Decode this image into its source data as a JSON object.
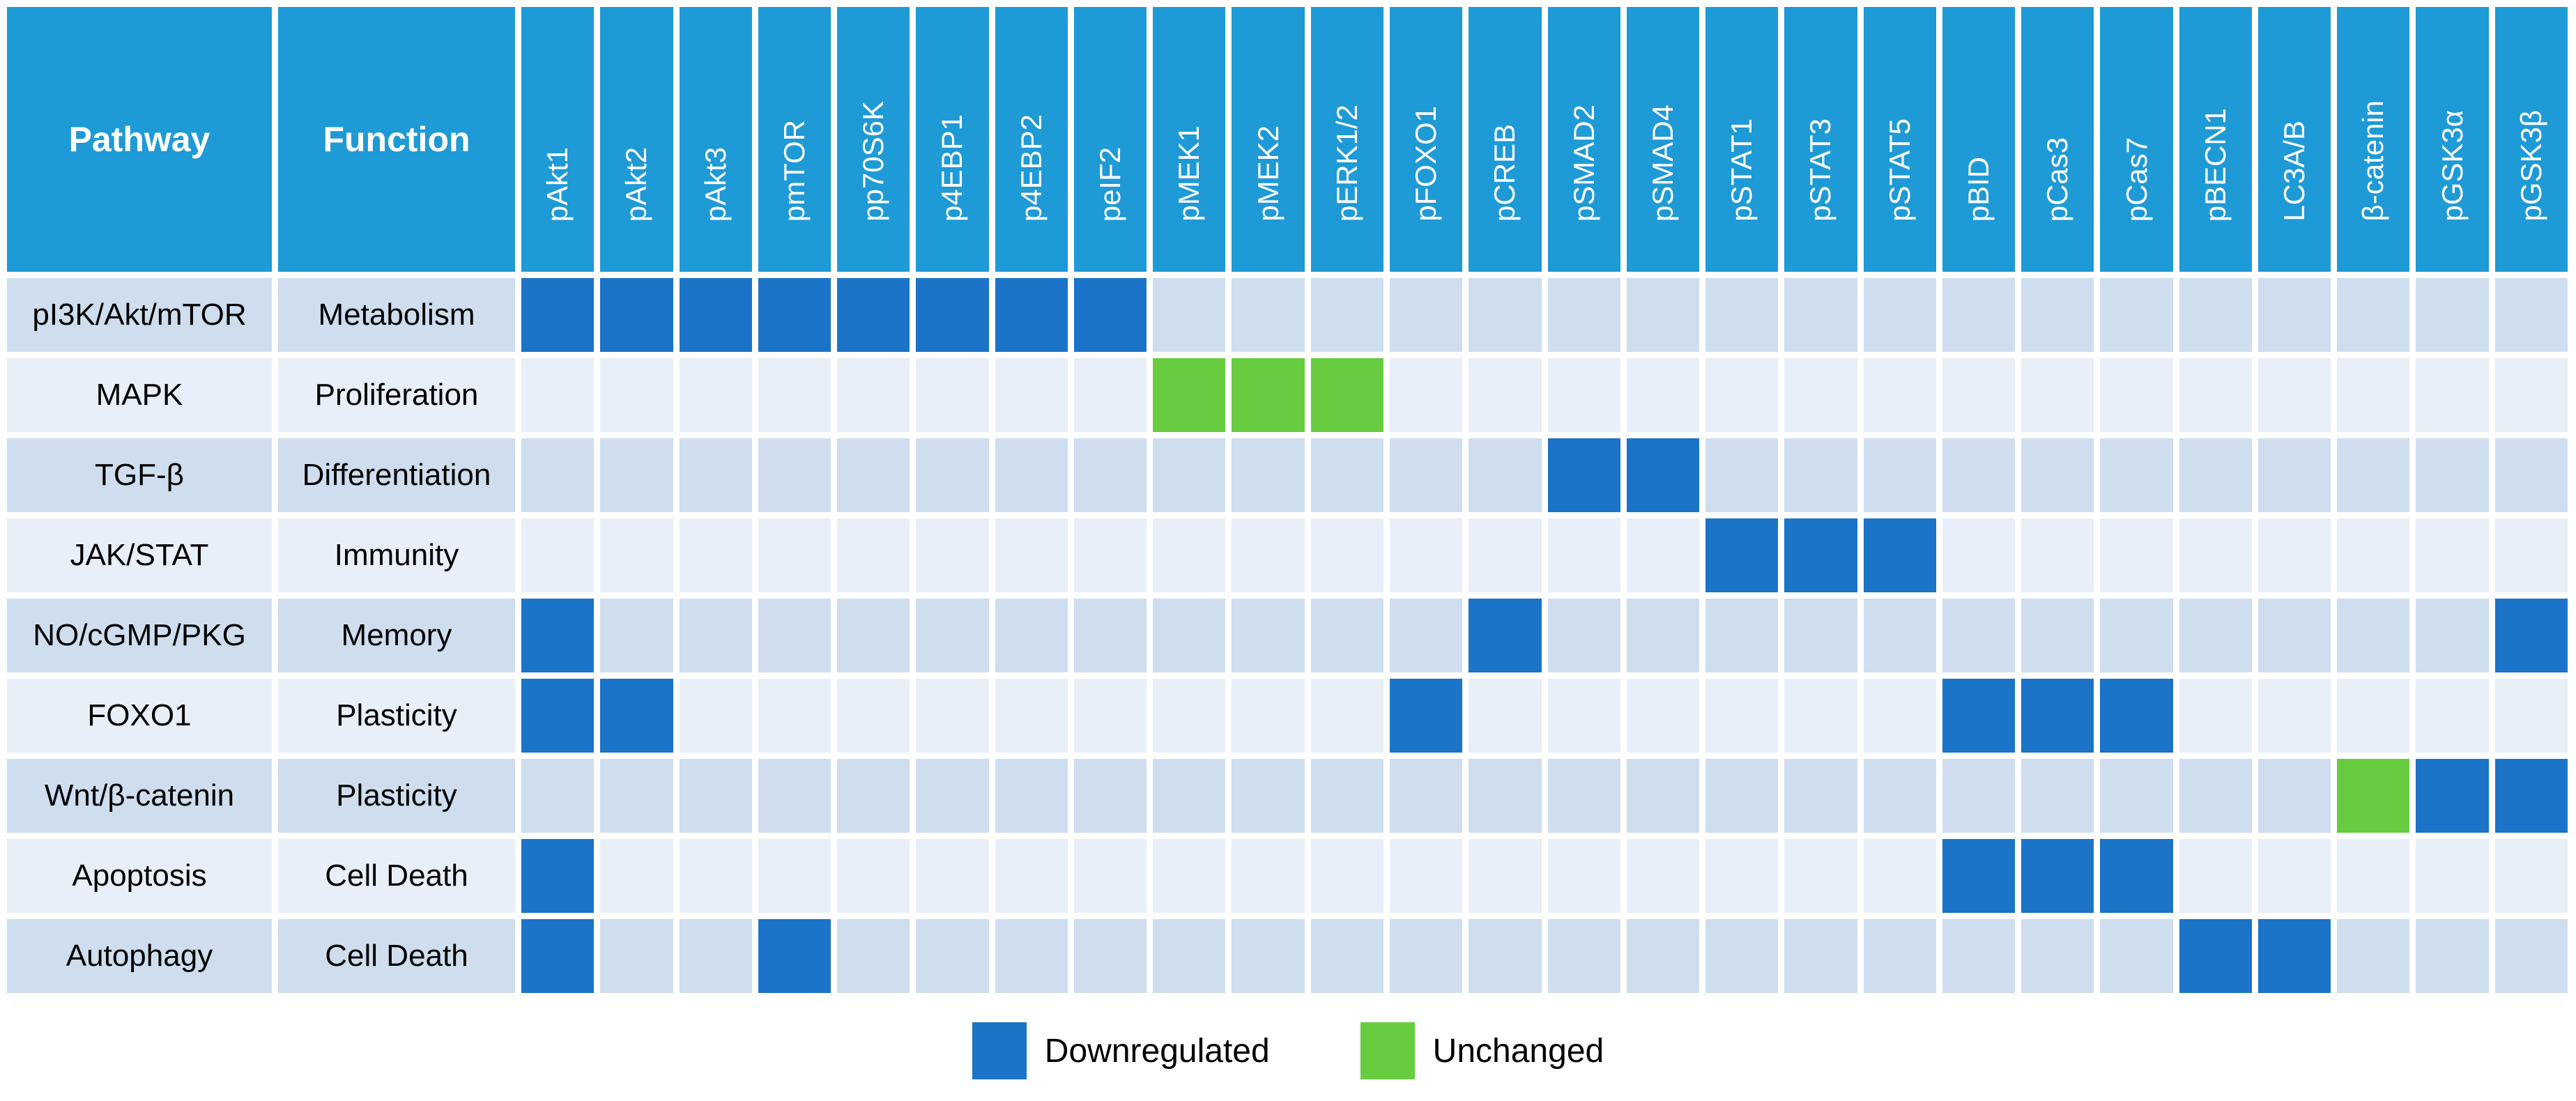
{
  "table": {
    "pathway_header": "Pathway",
    "function_header": "Function",
    "columns": [
      "pAkt1",
      "pAkt2",
      "pAkt3",
      "pmTOR",
      "pp70S6K",
      "p4EBP1",
      "p4EBP2",
      "peIF2",
      "pMEK1",
      "pMEK2",
      "pERK1/2",
      "pFOXO1",
      "pCREB",
      "pSMAD2",
      "pSMAD4",
      "pSTAT1",
      "pSTAT3",
      "pSTAT5",
      "pBID",
      "pCas3",
      "pCas7",
      "pBECN1",
      "LC3A/B",
      "β-catenin",
      "pGSK3α",
      "pGSK3β"
    ],
    "cell_state_codes": {
      "0": "none",
      "1": "downregulated",
      "2": "unchanged"
    },
    "rows": [
      {
        "pathway": "pI3K/Akt/mTOR",
        "function": "Metabolism",
        "cells": [
          1,
          1,
          1,
          1,
          1,
          1,
          1,
          1,
          0,
          0,
          0,
          0,
          0,
          0,
          0,
          0,
          0,
          0,
          0,
          0,
          0,
          0,
          0,
          0,
          0,
          0
        ]
      },
      {
        "pathway": "MAPK",
        "function": "Proliferation",
        "cells": [
          0,
          0,
          0,
          0,
          0,
          0,
          0,
          0,
          2,
          2,
          2,
          0,
          0,
          0,
          0,
          0,
          0,
          0,
          0,
          0,
          0,
          0,
          0,
          0,
          0,
          0
        ]
      },
      {
        "pathway": "TGF-β",
        "function": "Differentiation",
        "cells": [
          0,
          0,
          0,
          0,
          0,
          0,
          0,
          0,
          0,
          0,
          0,
          0,
          0,
          1,
          1,
          0,
          0,
          0,
          0,
          0,
          0,
          0,
          0,
          0,
          0,
          0
        ]
      },
      {
        "pathway": "JAK/STAT",
        "function": "Immunity",
        "cells": [
          0,
          0,
          0,
          0,
          0,
          0,
          0,
          0,
          0,
          0,
          0,
          0,
          0,
          0,
          0,
          1,
          1,
          1,
          0,
          0,
          0,
          0,
          0,
          0,
          0,
          0
        ]
      },
      {
        "pathway": "NO/cGMP/PKG",
        "function": "Memory",
        "cells": [
          1,
          0,
          0,
          0,
          0,
          0,
          0,
          0,
          0,
          0,
          0,
          0,
          1,
          0,
          0,
          0,
          0,
          0,
          0,
          0,
          0,
          0,
          0,
          0,
          0,
          1
        ]
      },
      {
        "pathway": "FOXO1",
        "function": "Plasticity",
        "cells": [
          1,
          1,
          0,
          0,
          0,
          0,
          0,
          0,
          0,
          0,
          0,
          1,
          0,
          0,
          0,
          0,
          0,
          0,
          1,
          1,
          1,
          0,
          0,
          0,
          0,
          0
        ]
      },
      {
        "pathway": "Wnt/β-catenin",
        "function": "Plasticity",
        "cells": [
          0,
          0,
          0,
          0,
          0,
          0,
          0,
          0,
          0,
          0,
          0,
          0,
          0,
          0,
          0,
          0,
          0,
          0,
          0,
          0,
          0,
          0,
          0,
          2,
          1,
          1
        ]
      },
      {
        "pathway": "Apoptosis",
        "function": "Cell Death",
        "cells": [
          1,
          0,
          0,
          0,
          0,
          0,
          0,
          0,
          0,
          0,
          0,
          0,
          0,
          0,
          0,
          0,
          0,
          0,
          1,
          1,
          1,
          0,
          0,
          0,
          0,
          0
        ]
      },
      {
        "pathway": "Autophagy",
        "function": "Cell Death",
        "cells": [
          1,
          0,
          0,
          1,
          0,
          0,
          0,
          0,
          0,
          0,
          0,
          0,
          0,
          0,
          0,
          0,
          0,
          0,
          0,
          0,
          0,
          1,
          1,
          0,
          0,
          0
        ]
      }
    ]
  },
  "legend": {
    "items": [
      {
        "label": "Downregulated",
        "state": "downregulated",
        "color": "#1B74C8"
      },
      {
        "label": "Unchanged",
        "state": "unchanged",
        "color": "#68CC41"
      }
    ]
  },
  "colors": {
    "header_blue": "#1E9AD6",
    "downregulated": "#1B74C8",
    "unchanged": "#68CC41",
    "row_odd": "#CEDEEE",
    "row_even": "#E9EFF8"
  },
  "chart_data": {
    "type": "heatmap",
    "title": "",
    "columns": [
      "pAkt1",
      "pAkt2",
      "pAkt3",
      "pmTOR",
      "pp70S6K",
      "p4EBP1",
      "p4EBP2",
      "peIF2",
      "pMEK1",
      "pMEK2",
      "pERK1/2",
      "pFOXO1",
      "pCREB",
      "pSMAD2",
      "pSMAD4",
      "pSTAT1",
      "pSTAT3",
      "pSTAT5",
      "pBID",
      "pCas3",
      "pCas7",
      "pBECN1",
      "LC3A/B",
      "β-catenin",
      "pGSK3α",
      "pGSK3β"
    ],
    "legend": [
      "Downregulated",
      "Unchanged"
    ],
    "legend_position": "bottom",
    "series": [
      {
        "pathway": "pI3K/Akt/mTOR",
        "function": "Metabolism",
        "downregulated": [
          "pAkt1",
          "pAkt2",
          "pAkt3",
          "pmTOR",
          "pp70S6K",
          "p4EBP1",
          "p4EBP2",
          "peIF2"
        ],
        "unchanged": []
      },
      {
        "pathway": "MAPK",
        "function": "Proliferation",
        "downregulated": [],
        "unchanged": [
          "pMEK1",
          "pMEK2",
          "pERK1/2"
        ]
      },
      {
        "pathway": "TGF-β",
        "function": "Differentiation",
        "downregulated": [
          "pSMAD2",
          "pSMAD4"
        ],
        "unchanged": []
      },
      {
        "pathway": "JAK/STAT",
        "function": "Immunity",
        "downregulated": [
          "pSTAT1",
          "pSTAT3",
          "pSTAT5"
        ],
        "unchanged": []
      },
      {
        "pathway": "NO/cGMP/PKG",
        "function": "Memory",
        "downregulated": [
          "pAkt1",
          "pCREB",
          "pGSK3β"
        ],
        "unchanged": []
      },
      {
        "pathway": "FOXO1",
        "function": "Plasticity",
        "downregulated": [
          "pAkt1",
          "pAkt2",
          "pFOXO1",
          "pBID",
          "pCas3",
          "pCas7"
        ],
        "unchanged": []
      },
      {
        "pathway": "Wnt/β-catenin",
        "function": "Plasticity",
        "downregulated": [
          "pGSK3α",
          "pGSK3β"
        ],
        "unchanged": [
          "β-catenin"
        ]
      },
      {
        "pathway": "Apoptosis",
        "function": "Cell Death",
        "downregulated": [
          "pAkt1",
          "pBID",
          "pCas3",
          "pCas7"
        ],
        "unchanged": []
      },
      {
        "pathway": "Autophagy",
        "function": "Cell Death",
        "downregulated": [
          "pAkt1",
          "pmTOR",
          "pBECN1",
          "LC3A/B"
        ],
        "unchanged": []
      }
    ]
  }
}
